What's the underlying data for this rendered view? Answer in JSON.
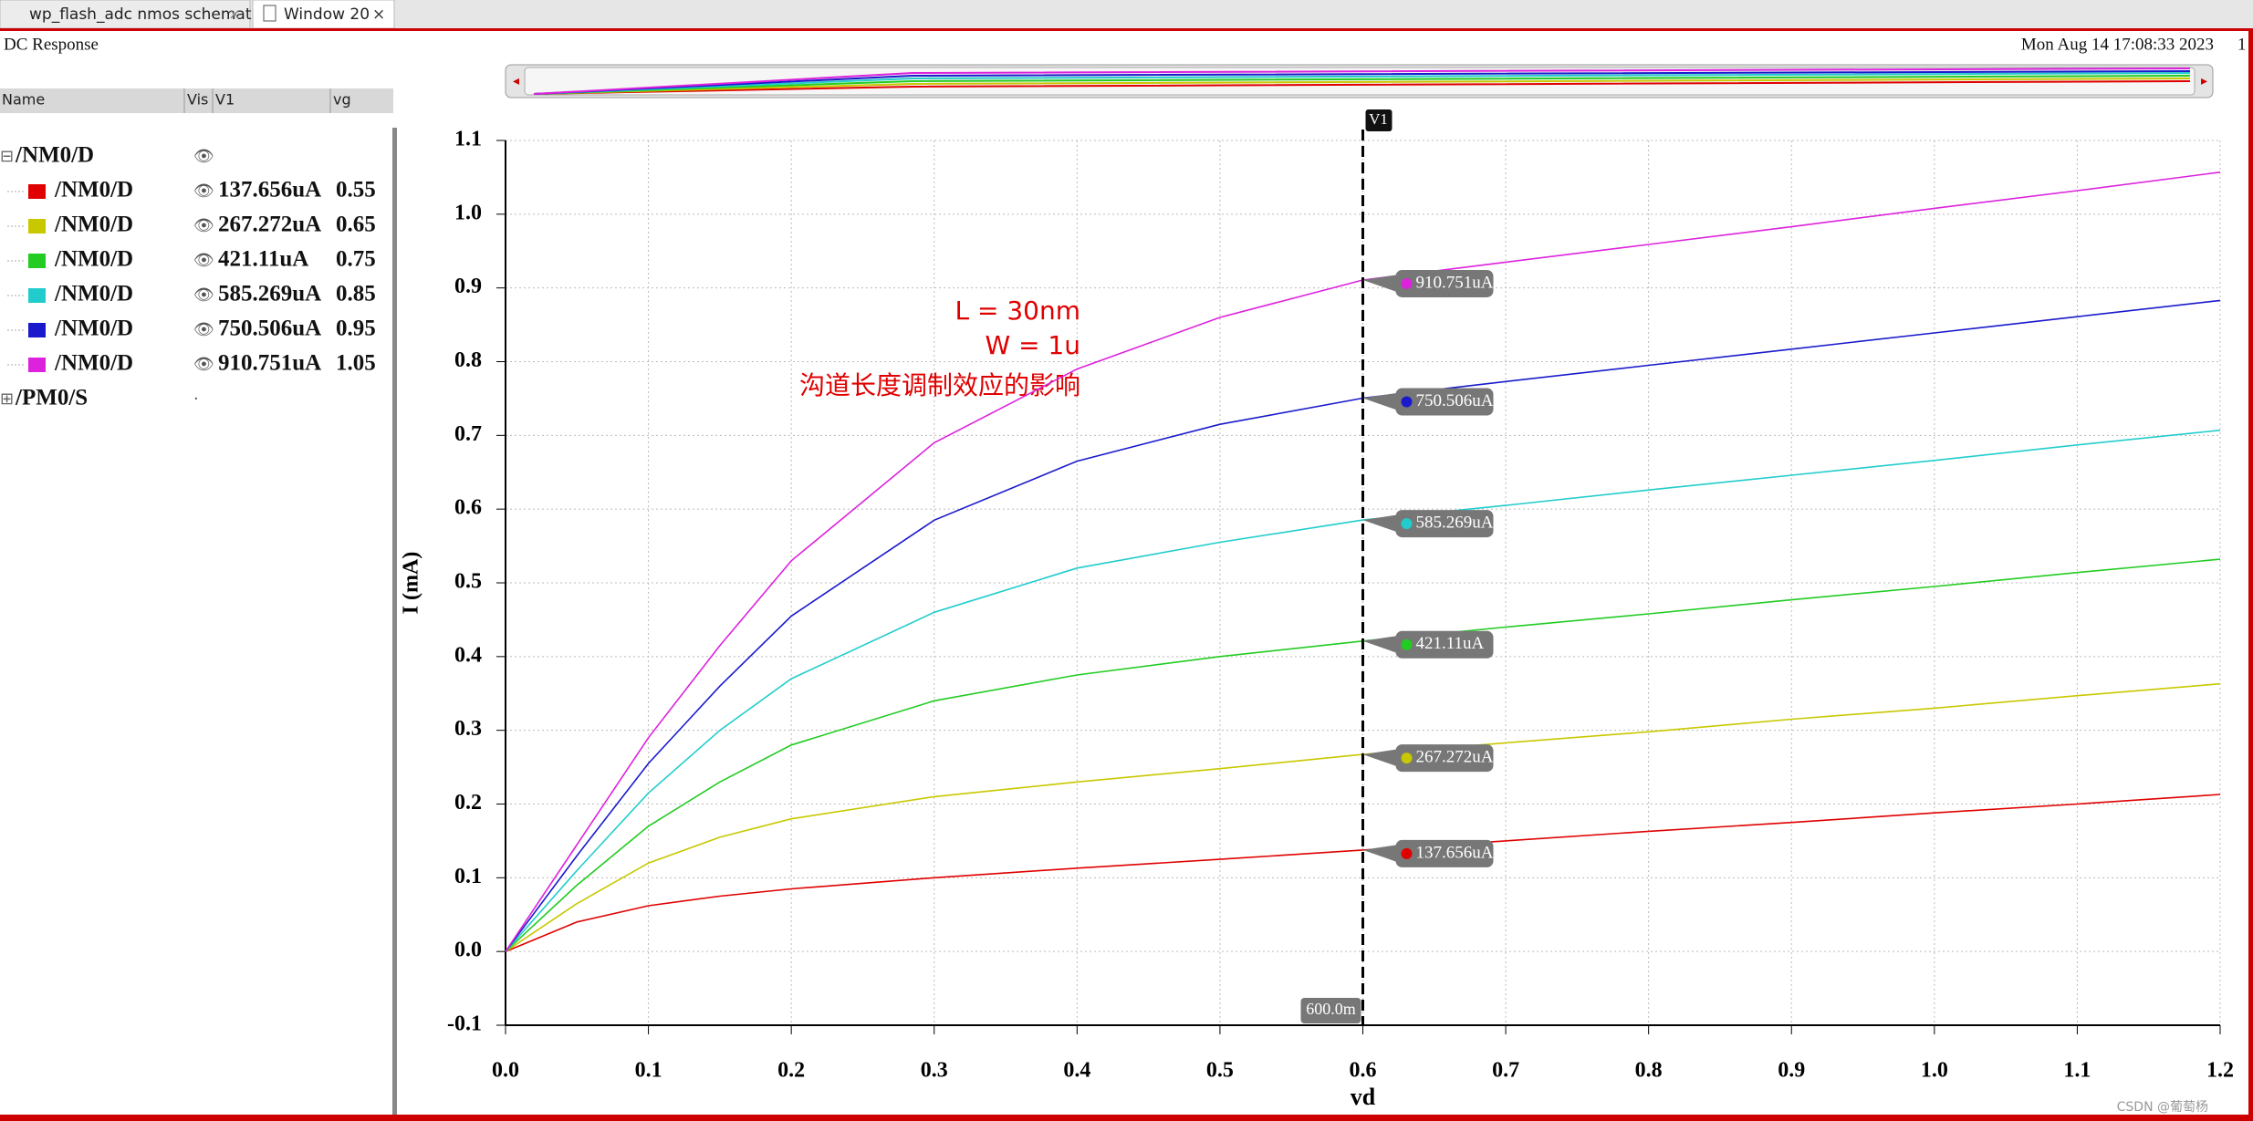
{
  "tabs": [
    "wp_flash_adc nmos schematic",
    "Window 20"
  ],
  "window": {
    "title": "DC Response",
    "timestamp": "Mon Aug 14 17:08:33 2023",
    "page": "1"
  },
  "panel": {
    "columns": [
      "Name",
      "Vis",
      "V1",
      "vg"
    ],
    "groups": [
      {
        "name": "/NM0/D",
        "rows": [
          {
            "name": "/NM0/D",
            "v1": "137.656uA",
            "vg": "0.55"
          },
          {
            "name": "/NM0/D",
            "v1": "267.272uA",
            "vg": "0.65"
          },
          {
            "name": "/NM0/D",
            "v1": "421.11uA",
            "vg": "0.75"
          },
          {
            "name": "/NM0/D",
            "v1": "585.269uA",
            "vg": "0.85"
          },
          {
            "name": "/NM0/D",
            "v1": "750.506uA",
            "vg": "0.95"
          },
          {
            "name": "/NM0/D",
            "v1": "910.751uA",
            "vg": "1.05"
          }
        ]
      },
      {
        "name": "/PM0/S",
        "rows": []
      }
    ]
  },
  "chart_data": {
    "type": "line",
    "xlabel": "vd",
    "ylabel": "I (mA)",
    "annotations": [
      "L = 30nm",
      "W = 1u",
      "沟道长度调制效应的影响"
    ],
    "x": [
      0,
      0.05,
      0.1,
      0.15,
      0.2,
      0.3,
      0.4,
      0.5,
      0.6,
      0.7,
      0.8,
      0.9,
      1.0,
      1.1,
      1.2
    ],
    "series": [
      {
        "name": "/NM0/D",
        "color": "#e00000",
        "cursor_value": 0.137656,
        "cursor_label": "137.656uA",
        "values": [
          0,
          0.04,
          0.062,
          0.075,
          0.085,
          0.1,
          0.113,
          0.125,
          0.137656,
          0.15,
          0.163,
          0.175,
          0.188,
          0.2,
          0.213
        ]
      },
      {
        "name": "/NM0/D",
        "color": "#c8c800",
        "cursor_value": 0.267272,
        "cursor_label": "267.272uA",
        "values": [
          0,
          0.065,
          0.12,
          0.155,
          0.18,
          0.21,
          0.23,
          0.248,
          0.267272,
          0.283,
          0.298,
          0.315,
          0.33,
          0.347,
          0.363
        ]
      },
      {
        "name": "/NM0/D",
        "color": "#22cc22",
        "cursor_value": 0.42111,
        "cursor_label": "421.11uA",
        "values": [
          0,
          0.09,
          0.17,
          0.23,
          0.28,
          0.34,
          0.375,
          0.4,
          0.42111,
          0.44,
          0.458,
          0.477,
          0.495,
          0.514,
          0.532
        ]
      },
      {
        "name": "/NM0/D",
        "color": "#22cccc",
        "cursor_value": 0.585269,
        "cursor_label": "585.269uA",
        "values": [
          0,
          0.11,
          0.215,
          0.3,
          0.37,
          0.46,
          0.52,
          0.555,
          0.585269,
          0.605,
          0.626,
          0.646,
          0.666,
          0.687,
          0.707
        ]
      },
      {
        "name": "/NM0/D",
        "color": "#1a1acc",
        "cursor_value": 0.750506,
        "cursor_label": "750.506uA",
        "values": [
          0,
          0.13,
          0.255,
          0.36,
          0.455,
          0.585,
          0.665,
          0.715,
          0.750506,
          0.773,
          0.795,
          0.817,
          0.839,
          0.861,
          0.883
        ]
      },
      {
        "name": "/NM0/D",
        "color": "#dd22dd",
        "cursor_value": 0.910751,
        "cursor_label": "910.751uA",
        "values": [
          0,
          0.145,
          0.29,
          0.415,
          0.53,
          0.69,
          0.79,
          0.86,
          0.910751,
          0.935,
          0.959,
          0.983,
          1.008,
          1.032,
          1.057
        ]
      }
    ],
    "cursor": {
      "name": "V1",
      "x": 0.6,
      "x_label": "600.0m"
    },
    "xlim": [
      0,
      1.2
    ],
    "xticks": [
      {
        "value": 0,
        "label": "0.0"
      },
      0.1,
      0.2,
      0.3,
      0.4,
      0.5,
      0.6,
      0.7,
      0.8,
      0.9,
      {
        "value": 1,
        "label": "1.0"
      },
      1.1,
      1.2
    ],
    "ylim": [
      -0.1,
      1.1
    ],
    "yticks": [
      -0.1,
      {
        "value": 0,
        "label": "0.0"
      },
      0.1,
      0.2,
      0.3,
      0.4,
      0.5,
      0.6,
      0.7,
      0.8,
      0.9,
      {
        "value": 1,
        "label": "1.0"
      },
      1.1
    ],
    "grid": true
  },
  "watermark": "CSDN @葡萄杨"
}
